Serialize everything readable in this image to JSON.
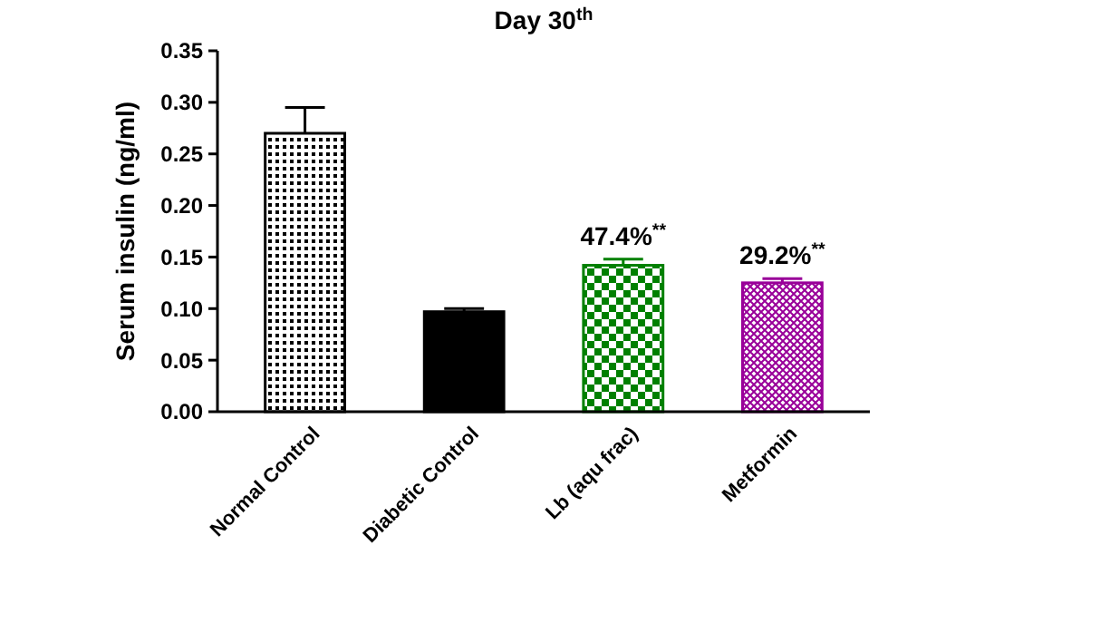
{
  "chart_data": {
    "type": "bar",
    "title": "Day 30$^{th}$",
    "ylabel": "Serum insulin (ng/ml)",
    "categories": [
      "Normal Control",
      "Diabetic Control",
      "Lb (aqu frac)",
      "Metformin"
    ],
    "values": [
      0.27,
      0.097,
      0.142,
      0.125
    ],
    "colors": [
      "#000000",
      "#000000",
      "#008000",
      "#990099"
    ],
    "errors": [
      0.025,
      0.003,
      0.006,
      0.004
    ],
    "ylim": [
      0,
      0.35
    ],
    "yticks": [
      {
        "value": 0,
        "label": "0.00"
      },
      {
        "value": 0.05,
        "label": "0.05"
      },
      {
        "value": 0.1,
        "label": "0.10"
      },
      {
        "value": 0.15,
        "label": "0.15"
      },
      {
        "value": 0.2,
        "label": "0.20"
      },
      {
        "value": 0.25,
        "label": "0.25"
      },
      {
        "value": 0.3,
        "label": "0.30"
      },
      {
        "value": 0.35,
        "label": "0.35"
      }
    ],
    "annotations": [
      {
        "text": "47.4%$^{**}$",
        "x": "Lb (aqu frac)",
        "y": 0.148
      },
      {
        "text": "29.2%$^{**}$",
        "x": "Metformin",
        "y": 0.129
      }
    ],
    "grid": false
  }
}
